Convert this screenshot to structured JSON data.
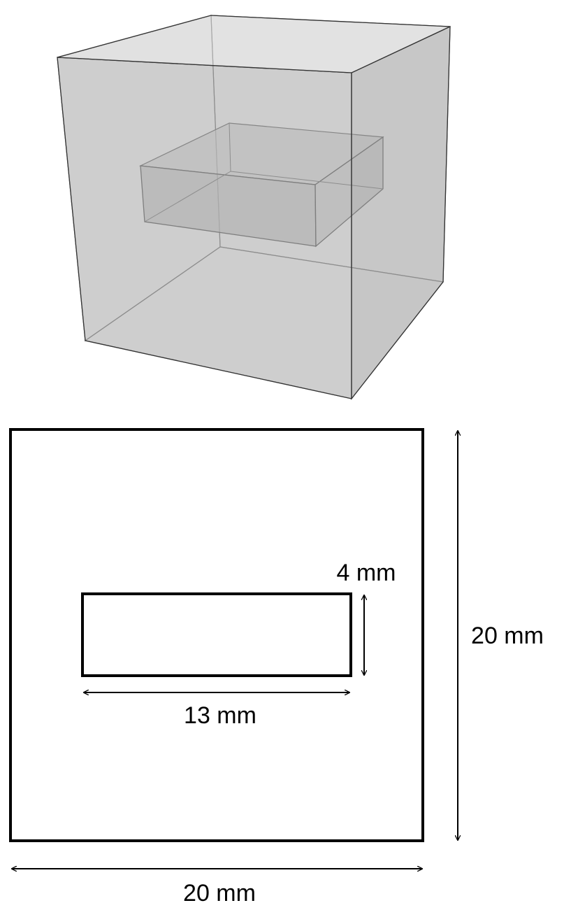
{
  "figure": {
    "cube_3d": {
      "outer_box": "cube",
      "inner_box": "rectangular-slab"
    },
    "cross_section": {
      "dimensions": {
        "outer_width": "20 mm",
        "outer_height": "20 mm",
        "inner_width": "13 mm",
        "inner_height": "4 mm"
      }
    }
  },
  "colors": {
    "face_fill": "#b9b9b9",
    "edge_stroke": "#3a3a3a",
    "outline_stroke": "#000000",
    "background": "#ffffff"
  }
}
